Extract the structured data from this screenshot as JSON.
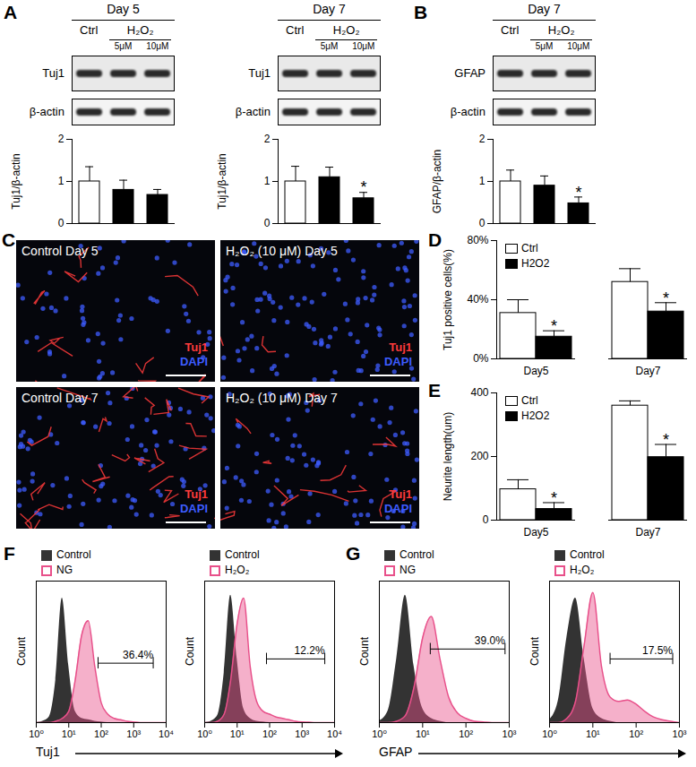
{
  "chart_data": [
    {
      "panel": "A",
      "type": "bar",
      "header": "Day 5",
      "group_label": "H₂O₂",
      "blot_rows": [
        "Tuj1",
        "β-actin"
      ],
      "categories": [
        "Ctrl",
        "5μM",
        "10μM"
      ],
      "values": [
        1.0,
        0.8,
        0.68
      ],
      "errors": [
        0.35,
        0.23,
        0.13
      ],
      "colors": [
        "#ffffff",
        "#000000",
        "#000000"
      ],
      "ylabel": "Tuj1/β-actin",
      "ylim": [
        0,
        2
      ],
      "yticks": [
        0,
        1,
        2
      ],
      "tick_labels": "y"
    },
    {
      "type": "bar",
      "header": "Day 7",
      "group_label": "H₂O₂",
      "blot_rows": [
        "Tuj1",
        "β-actin"
      ],
      "categories": [
        "Ctrl",
        "5μM",
        "10μM"
      ],
      "values": [
        1.0,
        1.1,
        0.6
      ],
      "errors": [
        0.36,
        0.24,
        0.14
      ],
      "significant": [
        false,
        false,
        true
      ],
      "annotation": "*",
      "colors": [
        "#ffffff",
        "#000000",
        "#000000"
      ],
      "ylabel": "Tuj1/β-actin",
      "ylim": [
        0,
        2
      ],
      "yticks": [
        0,
        1,
        2
      ],
      "tick_labels": "y"
    },
    {
      "panel": "B",
      "type": "bar",
      "header": "Day 7",
      "group_label": "H₂O₂",
      "blot_rows": [
        "GFAP",
        "β-actin"
      ],
      "categories": [
        "Ctrl",
        "5μM",
        "10μM"
      ],
      "values": [
        1.0,
        0.9,
        0.48
      ],
      "errors": [
        0.27,
        0.23,
        0.15
      ],
      "significant": [
        false,
        false,
        true
      ],
      "annotation": "*",
      "colors": [
        "#ffffff",
        "#000000",
        "#000000"
      ],
      "ylabel": "GFAP/β-actin",
      "ylim": [
        0,
        2
      ],
      "yticks": [
        0,
        1,
        2
      ],
      "tick_labels": "y"
    },
    {
      "panel": "D",
      "type": "bar",
      "categories": [
        "Day5",
        "Day7"
      ],
      "series": [
        {
          "name": "Ctrl",
          "color": "#ffffff",
          "values": [
            31,
            52
          ],
          "errors": [
            9,
            9
          ],
          "significant": [
            false,
            false
          ]
        },
        {
          "name": "H2O2",
          "color": "#000000",
          "values": [
            15,
            32
          ],
          "errors": [
            4,
            6
          ],
          "significant": [
            true,
            true
          ]
        }
      ],
      "annotation": "*",
      "ylabel": "Tuj1 positive cells(%)",
      "ylim": [
        0,
        80
      ],
      "yticks": [
        {
          "value": 0,
          "label": "0%"
        },
        {
          "value": 40,
          "label": "40%"
        },
        {
          "value": 80,
          "label": "80%"
        }
      ],
      "legend": "top-left"
    },
    {
      "panel": "E",
      "type": "bar",
      "categories": [
        "Day5",
        "Day7"
      ],
      "series": [
        {
          "name": "Ctrl",
          "color": "#ffffff",
          "values": [
            97,
            360
          ],
          "errors": [
            30,
            15
          ],
          "significant": [
            false,
            false
          ]
        },
        {
          "name": "H2O2",
          "color": "#000000",
          "values": [
            35,
            198
          ],
          "errors": [
            20,
            40
          ],
          "significant": [
            true,
            true
          ]
        }
      ],
      "annotation": "*",
      "ylabel": "Neurite length(um)",
      "ylim": [
        0,
        400
      ],
      "yticks": [
        0,
        200,
        400
      ],
      "legend": "top-left"
    },
    {
      "panel": "F",
      "type": "area",
      "log": "x",
      "xlabel": "Tuj1",
      "ylabel": "Count",
      "x": [
        1,
        1.58,
        2.51,
        3.98,
        6.31,
        10,
        15.8,
        25.1,
        39.8,
        63.1,
        100,
        158,
        251,
        398,
        631,
        1000,
        1585,
        2512,
        3981,
        6310,
        10000
      ],
      "series": [
        {
          "name": "Control",
          "color": "#333333",
          "values": [
            0,
            1,
            4,
            30,
            88,
            40,
            8,
            3,
            2,
            1,
            0.5,
            0,
            0,
            0,
            0,
            0,
            0,
            0,
            0,
            0,
            0
          ]
        },
        {
          "name": "NG",
          "color": "#e8508a",
          "values": [
            0,
            0,
            0,
            1,
            3,
            8,
            30,
            62,
            72,
            40,
            14,
            6,
            3,
            2,
            1,
            0.5,
            0,
            0,
            0,
            0,
            0
          ]
        }
      ],
      "gate": {
        "range": [
          80,
          4000
        ],
        "level": 42,
        "label": "36.4%"
      },
      "xlim": [
        1,
        10000
      ],
      "xticks": [
        {
          "value": 1,
          "label": "10⁰"
        },
        {
          "value": 10,
          "label": "10¹"
        },
        {
          "value": 100,
          "label": "10²"
        },
        {
          "value": 1000,
          "label": "10³"
        },
        {
          "value": 10000,
          "label": "10⁴"
        }
      ],
      "ylim": [
        0,
        100
      ],
      "yticks": [],
      "tick_labels": "x",
      "legend": "top-left"
    },
    {
      "type": "area",
      "log": "x",
      "ylabel": "Count",
      "x": [
        1,
        1.58,
        2.51,
        3.98,
        6.31,
        10,
        15.8,
        25.1,
        39.8,
        63.1,
        100,
        158,
        251,
        398,
        631,
        1000,
        1585,
        2512,
        3981,
        6310,
        10000
      ],
      "series": [
        {
          "name": "Control",
          "color": "#333333",
          "values": [
            0,
            1,
            5,
            35,
            90,
            45,
            10,
            3,
            1,
            0.5,
            0,
            0,
            0,
            0,
            0,
            0,
            0,
            0,
            0,
            0,
            0
          ]
        },
        {
          "name": "H₂O₂",
          "color": "#e8508a",
          "values": [
            0,
            0,
            1,
            6,
            30,
            70,
            88,
            40,
            15,
            8,
            6,
            4,
            3,
            2,
            1,
            0.5,
            0.3,
            0,
            0,
            0,
            0
          ]
        }
      ],
      "gate": {
        "range": [
          80,
          5000
        ],
        "level": 45,
        "label": "12.2%"
      },
      "xlim": [
        1,
        10000
      ],
      "xticks": [
        {
          "value": 1,
          "label": "10⁰"
        },
        {
          "value": 10,
          "label": "10¹"
        },
        {
          "value": 100,
          "label": "10²"
        },
        {
          "value": 1000,
          "label": "10³"
        },
        {
          "value": 10000,
          "label": "10⁴"
        }
      ],
      "ylim": [
        0,
        100
      ],
      "yticks": [],
      "tick_labels": "x",
      "legend": "top-left"
    },
    {
      "panel": "G",
      "type": "area",
      "log": "x",
      "xlabel": "GFAP",
      "ylabel": "Count",
      "x": [
        1,
        1.58,
        2.51,
        3.98,
        6.31,
        10,
        15.8,
        25.1,
        39.8,
        63.1,
        100,
        158,
        251,
        398,
        631,
        1000
      ],
      "series": [
        {
          "name": "Control",
          "color": "#333333",
          "values": [
            1,
            8,
            45,
            90,
            40,
            10,
            3,
            1,
            0,
            0,
            0,
            0,
            0,
            0,
            0,
            0
          ]
        },
        {
          "name": "NG",
          "color": "#e8508a",
          "values": [
            0,
            0,
            1,
            5,
            25,
            60,
            75,
            45,
            18,
            7,
            3,
            1,
            0.5,
            0,
            0,
            0
          ]
        }
      ],
      "gate": {
        "range": [
          15,
          800
        ],
        "level": 52,
        "label": "39.0%"
      },
      "xlim": [
        1,
        1000
      ],
      "xticks": [
        {
          "value": 1,
          "label": "10⁰"
        },
        {
          "value": 10,
          "label": "10¹"
        },
        {
          "value": 100,
          "label": "10²"
        },
        {
          "value": 1000,
          "label": "10³"
        }
      ],
      "ylim": [
        0,
        100
      ],
      "yticks": [],
      "tick_labels": "x",
      "legend": "top-left"
    },
    {
      "type": "area",
      "log": "x",
      "ylabel": "Count",
      "x": [
        1,
        1.58,
        2.51,
        3.98,
        6.31,
        10,
        15.8,
        25.1,
        39.8,
        63.1,
        100,
        158,
        251,
        398,
        631,
        1000
      ],
      "series": [
        {
          "name": "Control",
          "color": "#333333",
          "values": [
            2,
            15,
            60,
            88,
            45,
            10,
            3,
            1,
            0,
            0,
            0,
            0,
            0,
            0,
            0,
            0
          ]
        },
        {
          "name": "H₂O₂",
          "color": "#e8508a",
          "values": [
            0,
            0,
            3,
            15,
            55,
            92,
            40,
            18,
            15,
            16,
            13,
            8,
            4,
            2,
            1,
            0
          ]
        }
      ],
      "gate": {
        "range": [
          25,
          700
        ],
        "level": 45,
        "label": "17.5%"
      },
      "xlim": [
        1,
        1000
      ],
      "xticks": [
        {
          "value": 1,
          "label": "10⁰"
        },
        {
          "value": 10,
          "label": "10¹"
        },
        {
          "value": 100,
          "label": "10²"
        },
        {
          "value": 1000,
          "label": "10³"
        }
      ],
      "ylim": [
        0,
        100
      ],
      "yticks": [],
      "tick_labels": "x",
      "legend": "top-left"
    }
  ],
  "images": {
    "panel": "C",
    "frames": [
      "Control Day 5",
      "H₂O₂ (10 μM) Day 5",
      "Control Day 7",
      "H₂O₂ (10 μM) Day 7"
    ],
    "channels": [
      {
        "name": "Tuj1",
        "color": "#ff3b3b"
      },
      {
        "name": "DAPI",
        "color": "#3d5cff"
      }
    ]
  }
}
